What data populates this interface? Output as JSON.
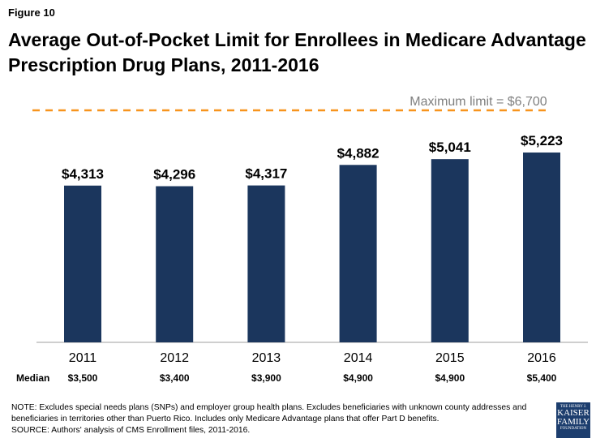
{
  "figure_label": "Figure 10",
  "chart_data": {
    "type": "bar",
    "title": "Average Out-of-Pocket Limit for Enrollees in Medicare Advantage Prescription Drug Plans, 2011-2016",
    "categories": [
      "2011",
      "2012",
      "2013",
      "2014",
      "2015",
      "2016"
    ],
    "values": [
      4313,
      4296,
      4317,
      4882,
      5041,
      5223
    ],
    "data_labels": [
      "$4,313",
      "$4,296",
      "$4,317",
      "$4,882",
      "$5,041",
      "$5,223"
    ],
    "bar_color": "#1b365d",
    "reference_line": {
      "label": "Maximum limit = $6,700",
      "value": 6700,
      "color": "#f7941d",
      "style": "dashed"
    },
    "median_row": {
      "label": "Median",
      "values": [
        "$3,500",
        "$3,400",
        "$3,900",
        "$4,900",
        "$4,900",
        "$5,400"
      ]
    },
    "grid": false
  },
  "note": "NOTE:  Excludes special needs plans (SNPs) and employer group health plans. Excludes beneficiaries with unknown county addresses and beneficiaries in territories other than Puerto Rico. Includes only Medicare Advantage plans that offer Part D benefits.",
  "source": "SOURCE:  Authors' analysis of CMS Enrollment files, 2011-2016.",
  "logo": {
    "line1": "THE HENRY J.",
    "line2": "KAISER",
    "line3": "FAMILY",
    "line4": "FOUNDATION"
  }
}
